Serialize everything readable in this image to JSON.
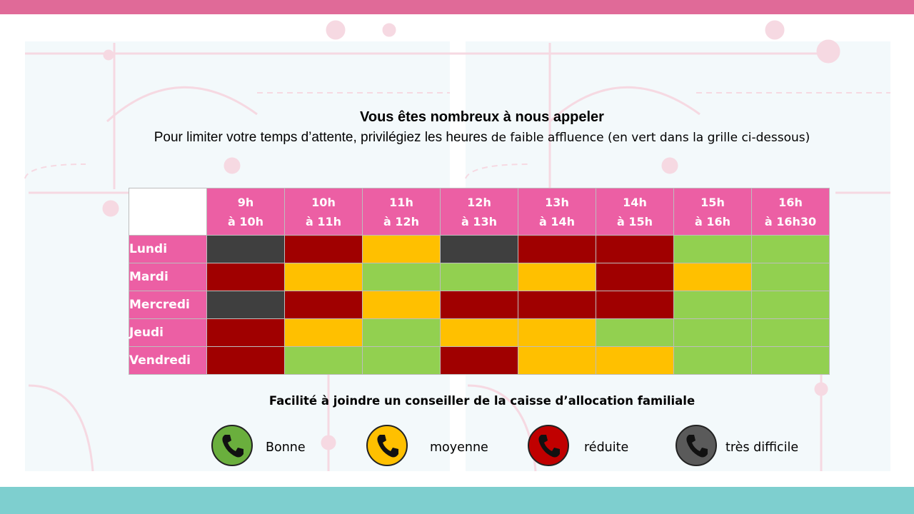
{
  "heading": {
    "title": "Vous êtes nombreux à nous appeler",
    "subtitle_part1": "Pour limiter votre temps d’attente, privilégiez les heures ",
    "subtitle_part2": "de faible affluence (en vert dans la grille ci-dessous)"
  },
  "grid": {
    "hours": [
      {
        "from": "9h",
        "to": "à 10h"
      },
      {
        "from": "10h",
        "to": "à 11h"
      },
      {
        "from": "11h",
        "to": "à 12h"
      },
      {
        "from": "12h",
        "to": "à 13h"
      },
      {
        "from": "13h",
        "to": "à 14h"
      },
      {
        "from": "14h",
        "to": "à 15h"
      },
      {
        "from": "15h",
        "to": "à 16h"
      },
      {
        "from": "16h",
        "to": "à 16h30"
      }
    ],
    "rows": [
      {
        "day": "Lundi",
        "levels": [
          "tres_difficile",
          "reduite",
          "moyenne",
          "tres_difficile",
          "reduite",
          "reduite",
          "bonne",
          "bonne"
        ]
      },
      {
        "day": "Mardi",
        "levels": [
          "reduite",
          "moyenne",
          "bonne",
          "bonne",
          "moyenne",
          "reduite",
          "moyenne",
          "bonne"
        ]
      },
      {
        "day": "Mercredi",
        "levels": [
          "tres_difficile",
          "reduite",
          "moyenne",
          "reduite",
          "reduite",
          "reduite",
          "bonne",
          "bonne"
        ]
      },
      {
        "day": "Jeudi",
        "levels": [
          "reduite",
          "moyenne",
          "bonne",
          "moyenne",
          "moyenne",
          "bonne",
          "bonne",
          "bonne"
        ]
      },
      {
        "day": "Vendredi",
        "levels": [
          "reduite",
          "bonne",
          "bonne",
          "reduite",
          "moyenne",
          "moyenne",
          "bonne",
          "bonne"
        ]
      }
    ]
  },
  "legend": {
    "title": "Facilité à joindre un conseiller de la caisse d’allocation familiale",
    "items": [
      {
        "key": "bonne",
        "label": "Bonne",
        "icon": "phone-icon"
      },
      {
        "key": "moyenne",
        "label": "moyenne",
        "icon": "phone-icon"
      },
      {
        "key": "reduite",
        "label": "réduite",
        "icon": "phone-icon"
      },
      {
        "key": "tres_difficile",
        "label": "très difficile",
        "icon": "phone-icon"
      }
    ]
  },
  "colors": {
    "bonne": "#92d050",
    "moyenne": "#ffc000",
    "reduite": "#a00000",
    "tres_difficile": "#3f3f3f",
    "icon_bonne": "#6aaf3d",
    "icon_moyenne": "#ffc000",
    "icon_reduite": "#c00000",
    "icon_tres_difficile": "#5a5a5a",
    "header_pink": "#ec5fa4",
    "top_bar": "#e06a98",
    "bottom_bar": "#7ecfcf"
  }
}
